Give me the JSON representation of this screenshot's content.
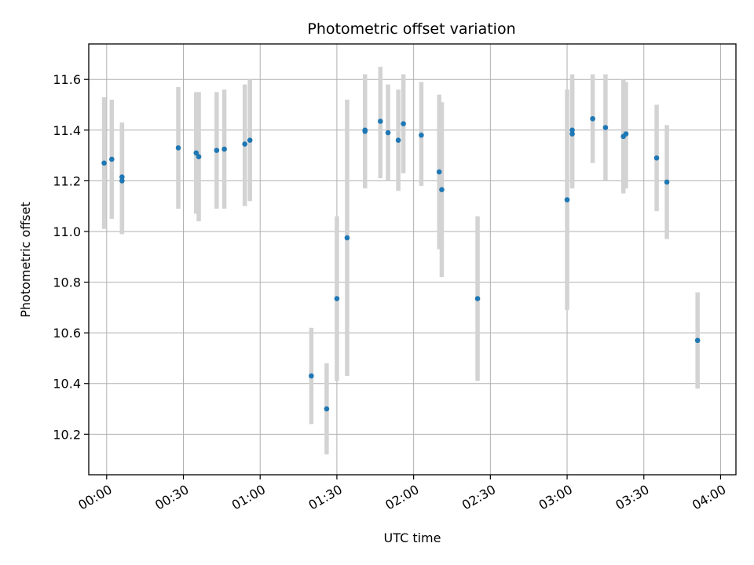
{
  "chart_data": {
    "type": "scatter",
    "title": "Photometric offset variation",
    "xlabel": "UTC time",
    "ylabel": "Photometric offset",
    "xlim": [
      "23:53",
      "04:06"
    ],
    "ylim": [
      10.04,
      11.74
    ],
    "x_ticks": [
      "00:00",
      "00:30",
      "01:00",
      "01:30",
      "02:00",
      "02:30",
      "03:00",
      "03:30",
      "04:00"
    ],
    "y_ticks": [
      10.2,
      10.4,
      10.6,
      10.8,
      11.0,
      11.2,
      11.4,
      11.6
    ],
    "grid": true,
    "colors": {
      "points": "#1f77b4",
      "errorbars": "#d3d3d3",
      "grid": "#b0b0b0"
    },
    "series": [
      {
        "points": [
          {
            "x": "23:59",
            "y": 11.27,
            "ylow": 11.01,
            "yhigh": 11.53
          },
          {
            "x": "00:02",
            "y": 11.285,
            "ylow": 11.05,
            "yhigh": 11.52
          },
          {
            "x": "00:06",
            "y": 11.215,
            "ylow": 10.99,
            "yhigh": 11.43
          },
          {
            "x": "00:06",
            "y": 11.2,
            "ylow": 10.99,
            "yhigh": 11.42
          },
          {
            "x": "00:28",
            "y": 11.33,
            "ylow": 11.09,
            "yhigh": 11.57
          },
          {
            "x": "00:35",
            "y": 11.31,
            "ylow": 11.07,
            "yhigh": 11.55
          },
          {
            "x": "00:36",
            "y": 11.295,
            "ylow": 11.04,
            "yhigh": 11.55
          },
          {
            "x": "00:43",
            "y": 11.32,
            "ylow": 11.09,
            "yhigh": 11.55
          },
          {
            "x": "00:46",
            "y": 11.325,
            "ylow": 11.09,
            "yhigh": 11.56
          },
          {
            "x": "00:54",
            "y": 11.345,
            "ylow": 11.1,
            "yhigh": 11.58
          },
          {
            "x": "00:56",
            "y": 11.36,
            "ylow": 11.12,
            "yhigh": 11.6
          },
          {
            "x": "01:20",
            "y": 10.43,
            "ylow": 10.24,
            "yhigh": 10.62
          },
          {
            "x": "01:26",
            "y": 10.3,
            "ylow": 10.12,
            "yhigh": 10.48
          },
          {
            "x": "01:30",
            "y": 10.735,
            "ylow": 10.41,
            "yhigh": 11.06
          },
          {
            "x": "01:34",
            "y": 10.975,
            "ylow": 10.43,
            "yhigh": 11.52
          },
          {
            "x": "01:41",
            "y": 11.395,
            "ylow": 11.17,
            "yhigh": 11.62
          },
          {
            "x": "01:41",
            "y": 11.4,
            "ylow": 11.18,
            "yhigh": 11.62
          },
          {
            "x": "01:47",
            "y": 11.435,
            "ylow": 11.21,
            "yhigh": 11.65
          },
          {
            "x": "01:50",
            "y": 11.39,
            "ylow": 11.2,
            "yhigh": 11.58
          },
          {
            "x": "01:54",
            "y": 11.36,
            "ylow": 11.16,
            "yhigh": 11.56
          },
          {
            "x": "01:56",
            "y": 11.425,
            "ylow": 11.23,
            "yhigh": 11.62
          },
          {
            "x": "02:03",
            "y": 11.38,
            "ylow": 11.18,
            "yhigh": 11.59
          },
          {
            "x": "02:10",
            "y": 11.235,
            "ylow": 10.93,
            "yhigh": 11.54
          },
          {
            "x": "02:11",
            "y": 11.165,
            "ylow": 10.82,
            "yhigh": 11.51
          },
          {
            "x": "02:25",
            "y": 10.735,
            "ylow": 10.41,
            "yhigh": 11.06
          },
          {
            "x": "03:00",
            "y": 11.125,
            "ylow": 10.69,
            "yhigh": 11.56
          },
          {
            "x": "03:02",
            "y": 11.385,
            "ylow": 11.17,
            "yhigh": 11.6
          },
          {
            "x": "03:02",
            "y": 11.4,
            "ylow": 11.18,
            "yhigh": 11.62
          },
          {
            "x": "03:10",
            "y": 11.445,
            "ylow": 11.27,
            "yhigh": 11.62
          },
          {
            "x": "03:15",
            "y": 11.41,
            "ylow": 11.2,
            "yhigh": 11.62
          },
          {
            "x": "03:22",
            "y": 11.375,
            "ylow": 11.15,
            "yhigh": 11.6
          },
          {
            "x": "03:23",
            "y": 11.385,
            "ylow": 11.17,
            "yhigh": 11.59
          },
          {
            "x": "03:35",
            "y": 11.29,
            "ylow": 11.08,
            "yhigh": 11.5
          },
          {
            "x": "03:39",
            "y": 11.195,
            "ylow": 10.97,
            "yhigh": 11.42
          },
          {
            "x": "03:51",
            "y": 10.57,
            "ylow": 10.38,
            "yhigh": 10.76
          }
        ]
      }
    ]
  }
}
